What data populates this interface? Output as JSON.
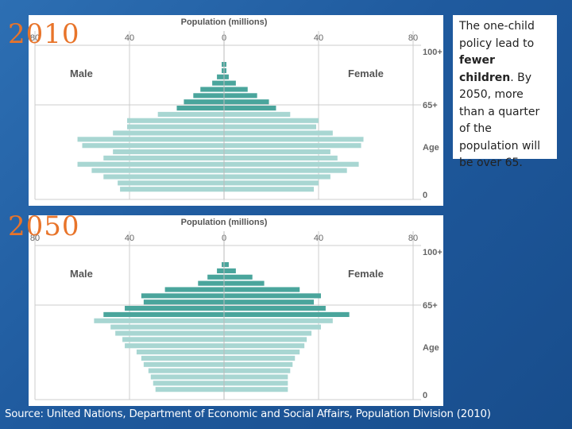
{
  "callout": {
    "text_before": "The one-child policy lead to ",
    "text_bold": "fewer children",
    "text_after": ". By 2050, more than a quarter of the population will be over 65."
  },
  "source": "Source: United Nations, Department of Economic and Social Affairs, Population Division (2010)",
  "colors": {
    "young_old": "#4aa59c",
    "working": "#a8d6d2",
    "axis": "#999999",
    "grid": "#cccccc",
    "year": "#e8742a"
  },
  "chart_data": [
    {
      "type": "bar",
      "year_label": "2010",
      "title": "Population (millions)",
      "left_label": "Male",
      "right_label": "Female",
      "xticks": [
        80,
        40,
        0,
        40,
        80
      ],
      "xlim": [
        -80,
        80
      ],
      "ytick_labels": [
        "100+",
        "65+",
        "Age",
        "0"
      ],
      "groups": [
        "100+",
        "65+",
        "0"
      ],
      "male": [
        1,
        1,
        3,
        5,
        10,
        13,
        17,
        20,
        28,
        41,
        41,
        47,
        62,
        60,
        47,
        51,
        62,
        56,
        51,
        45,
        44
      ],
      "female": [
        1,
        1,
        2,
        5,
        10,
        14,
        19,
        22,
        28,
        40,
        39,
        46,
        59,
        58,
        45,
        48,
        57,
        52,
        45,
        40,
        38
      ],
      "dark_rows": 8
    },
    {
      "type": "bar",
      "year_label": "2050",
      "title": "Population (millions)",
      "left_label": "Male",
      "right_label": "Female",
      "xticks": [
        80,
        40,
        0,
        40,
        80
      ],
      "xlim": [
        -80,
        80
      ],
      "ytick_labels": [
        "100+",
        "65+",
        "Age",
        "0"
      ],
      "groups": [
        "100+",
        "65+",
        "0"
      ],
      "male": [
        1,
        3,
        7,
        11,
        25,
        35,
        34,
        42,
        51,
        55,
        48,
        46,
        43,
        42,
        37,
        35,
        34,
        32,
        31,
        30,
        29
      ],
      "female": [
        2,
        5,
        12,
        17,
        32,
        41,
        38,
        43,
        53,
        46,
        41,
        37,
        35,
        34,
        32,
        30,
        29,
        28,
        27,
        27,
        27
      ],
      "dark_rows": 9
    }
  ]
}
